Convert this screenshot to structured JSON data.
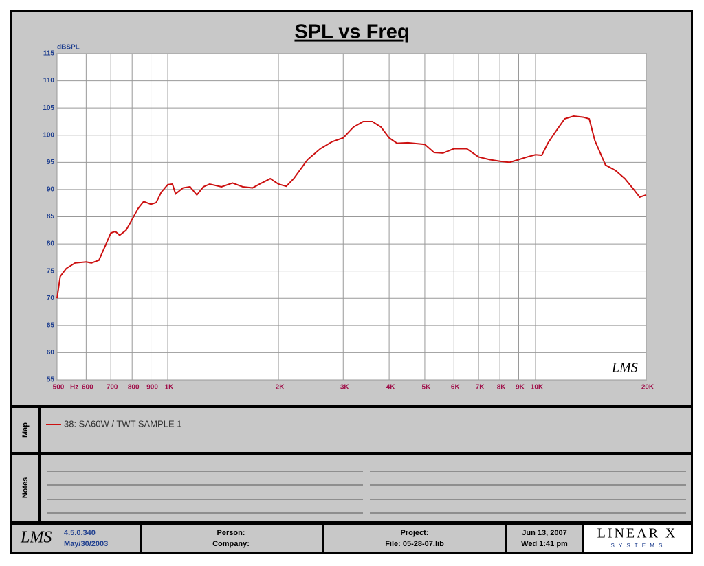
{
  "chart_data": {
    "type": "line",
    "title": "SPL vs Freq",
    "y_label": "dBSPL",
    "x_label": "Hz",
    "watermark": "LMS",
    "xlog": true,
    "grid": true,
    "xlim": [
      500,
      20000
    ],
    "ylim": [
      55,
      115
    ],
    "xticks": [
      500,
      600,
      700,
      800,
      900,
      {
        "value": 1000,
        "label": "1K"
      },
      {
        "value": 2000,
        "label": "2K"
      },
      {
        "value": 3000,
        "label": "3K"
      },
      {
        "value": 4000,
        "label": "4K"
      },
      {
        "value": 5000,
        "label": "5K"
      },
      {
        "value": 6000,
        "label": "6K"
      },
      {
        "value": 7000,
        "label": "7K"
      },
      {
        "value": 8000,
        "label": "8K"
      },
      {
        "value": 9000,
        "label": "9K"
      },
      {
        "value": 10000,
        "label": "10K"
      },
      {
        "value": 20000,
        "label": "20K"
      }
    ],
    "yticks": [
      55,
      60,
      65,
      70,
      75,
      80,
      85,
      90,
      95,
      100,
      105,
      110,
      115
    ],
    "series": [
      {
        "name": "38: SA60W / TWT SAMPLE 1",
        "color": "#cc1010",
        "x": [
          500,
          510,
          530,
          560,
          600,
          620,
          650,
          680,
          700,
          720,
          740,
          770,
          800,
          830,
          860,
          900,
          930,
          960,
          1000,
          1030,
          1050,
          1100,
          1150,
          1200,
          1250,
          1300,
          1400,
          1500,
          1600,
          1700,
          1800,
          1900,
          2000,
          2100,
          2200,
          2400,
          2600,
          2800,
          3000,
          3200,
          3400,
          3600,
          3800,
          4000,
          4200,
          4500,
          5000,
          5300,
          5600,
          6000,
          6500,
          7000,
          7500,
          8000,
          8500,
          9000,
          9500,
          10000,
          10400,
          10800,
          11300,
          12000,
          12700,
          13500,
          14000,
          14500,
          15500,
          16500,
          17500,
          18500,
          19200,
          20000
        ],
        "values": [
          70,
          74,
          75.5,
          76.5,
          76.7,
          76.5,
          77,
          80,
          82,
          82.3,
          81.6,
          82.5,
          84.5,
          86.5,
          87.8,
          87.3,
          87.6,
          89.5,
          90.9,
          91,
          89.2,
          90.3,
          90.5,
          89,
          90.5,
          91,
          90.5,
          91.2,
          90.5,
          90.3,
          91.2,
          92,
          91,
          90.6,
          92,
          95.5,
          97.5,
          98.8,
          99.5,
          101.5,
          102.5,
          102.5,
          101.5,
          99.5,
          98.5,
          98.6,
          98.3,
          96.8,
          96.7,
          97.5,
          97.5,
          96,
          95.5,
          95.2,
          95,
          95.5,
          96,
          96.4,
          96.3,
          98.5,
          100.5,
          103,
          103.5,
          103.3,
          103,
          99,
          94.5,
          93.5,
          92,
          90,
          88.6,
          89
        ]
      }
    ]
  },
  "map_label": "Map",
  "notes_label": "Notes",
  "footer": {
    "logo": "LMS",
    "version": "4.5.0.340",
    "build_date": "May/30/2003",
    "person": "Person:",
    "company": "Company:",
    "project": "Project:",
    "file": "File: 05-28-07.lib",
    "date": "Jun 13, 2007",
    "time": "Wed  1:41 pm",
    "brand": "LINEAR X",
    "brand_sub": "S Y S T E M S"
  }
}
